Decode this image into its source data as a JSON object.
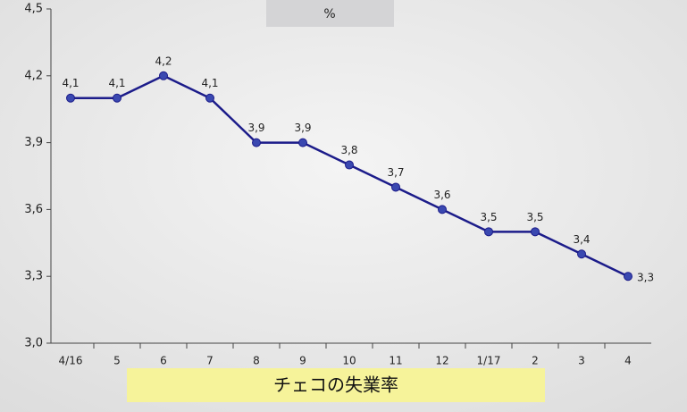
{
  "chart_data": {
    "type": "line",
    "title": "チェコの失業率",
    "y_unit": "%",
    "categories": [
      "4/16",
      "5",
      "6",
      "7",
      "8",
      "9",
      "10",
      "11",
      "12",
      "1/17",
      "2",
      "3",
      "4"
    ],
    "series": [
      {
        "color": "#1c1c8a",
        "values": [
          4.1,
          4.1,
          4.2,
          4.1,
          3.9,
          3.9,
          3.8,
          3.7,
          3.6,
          3.5,
          3.5,
          3.4,
          3.3
        ],
        "value_labels": [
          "4,1",
          "4,1",
          "4,2",
          "4,1",
          "3,9",
          "3,9",
          "3,8",
          "3,7",
          "3,6",
          "3,5",
          "3,5",
          "3,4",
          "3,3"
        ]
      }
    ],
    "ylim": [
      3.0,
      4.5
    ],
    "yticks": [
      {
        "value": 3.0,
        "label": "3,0"
      },
      {
        "value": 3.3,
        "label": "3,3"
      },
      {
        "value": 3.6,
        "label": "3,6"
      },
      {
        "value": 3.9,
        "label": "3,9"
      },
      {
        "value": 4.2,
        "label": "4,2"
      },
      {
        "value": 4.5,
        "label": "4,5"
      }
    ]
  }
}
